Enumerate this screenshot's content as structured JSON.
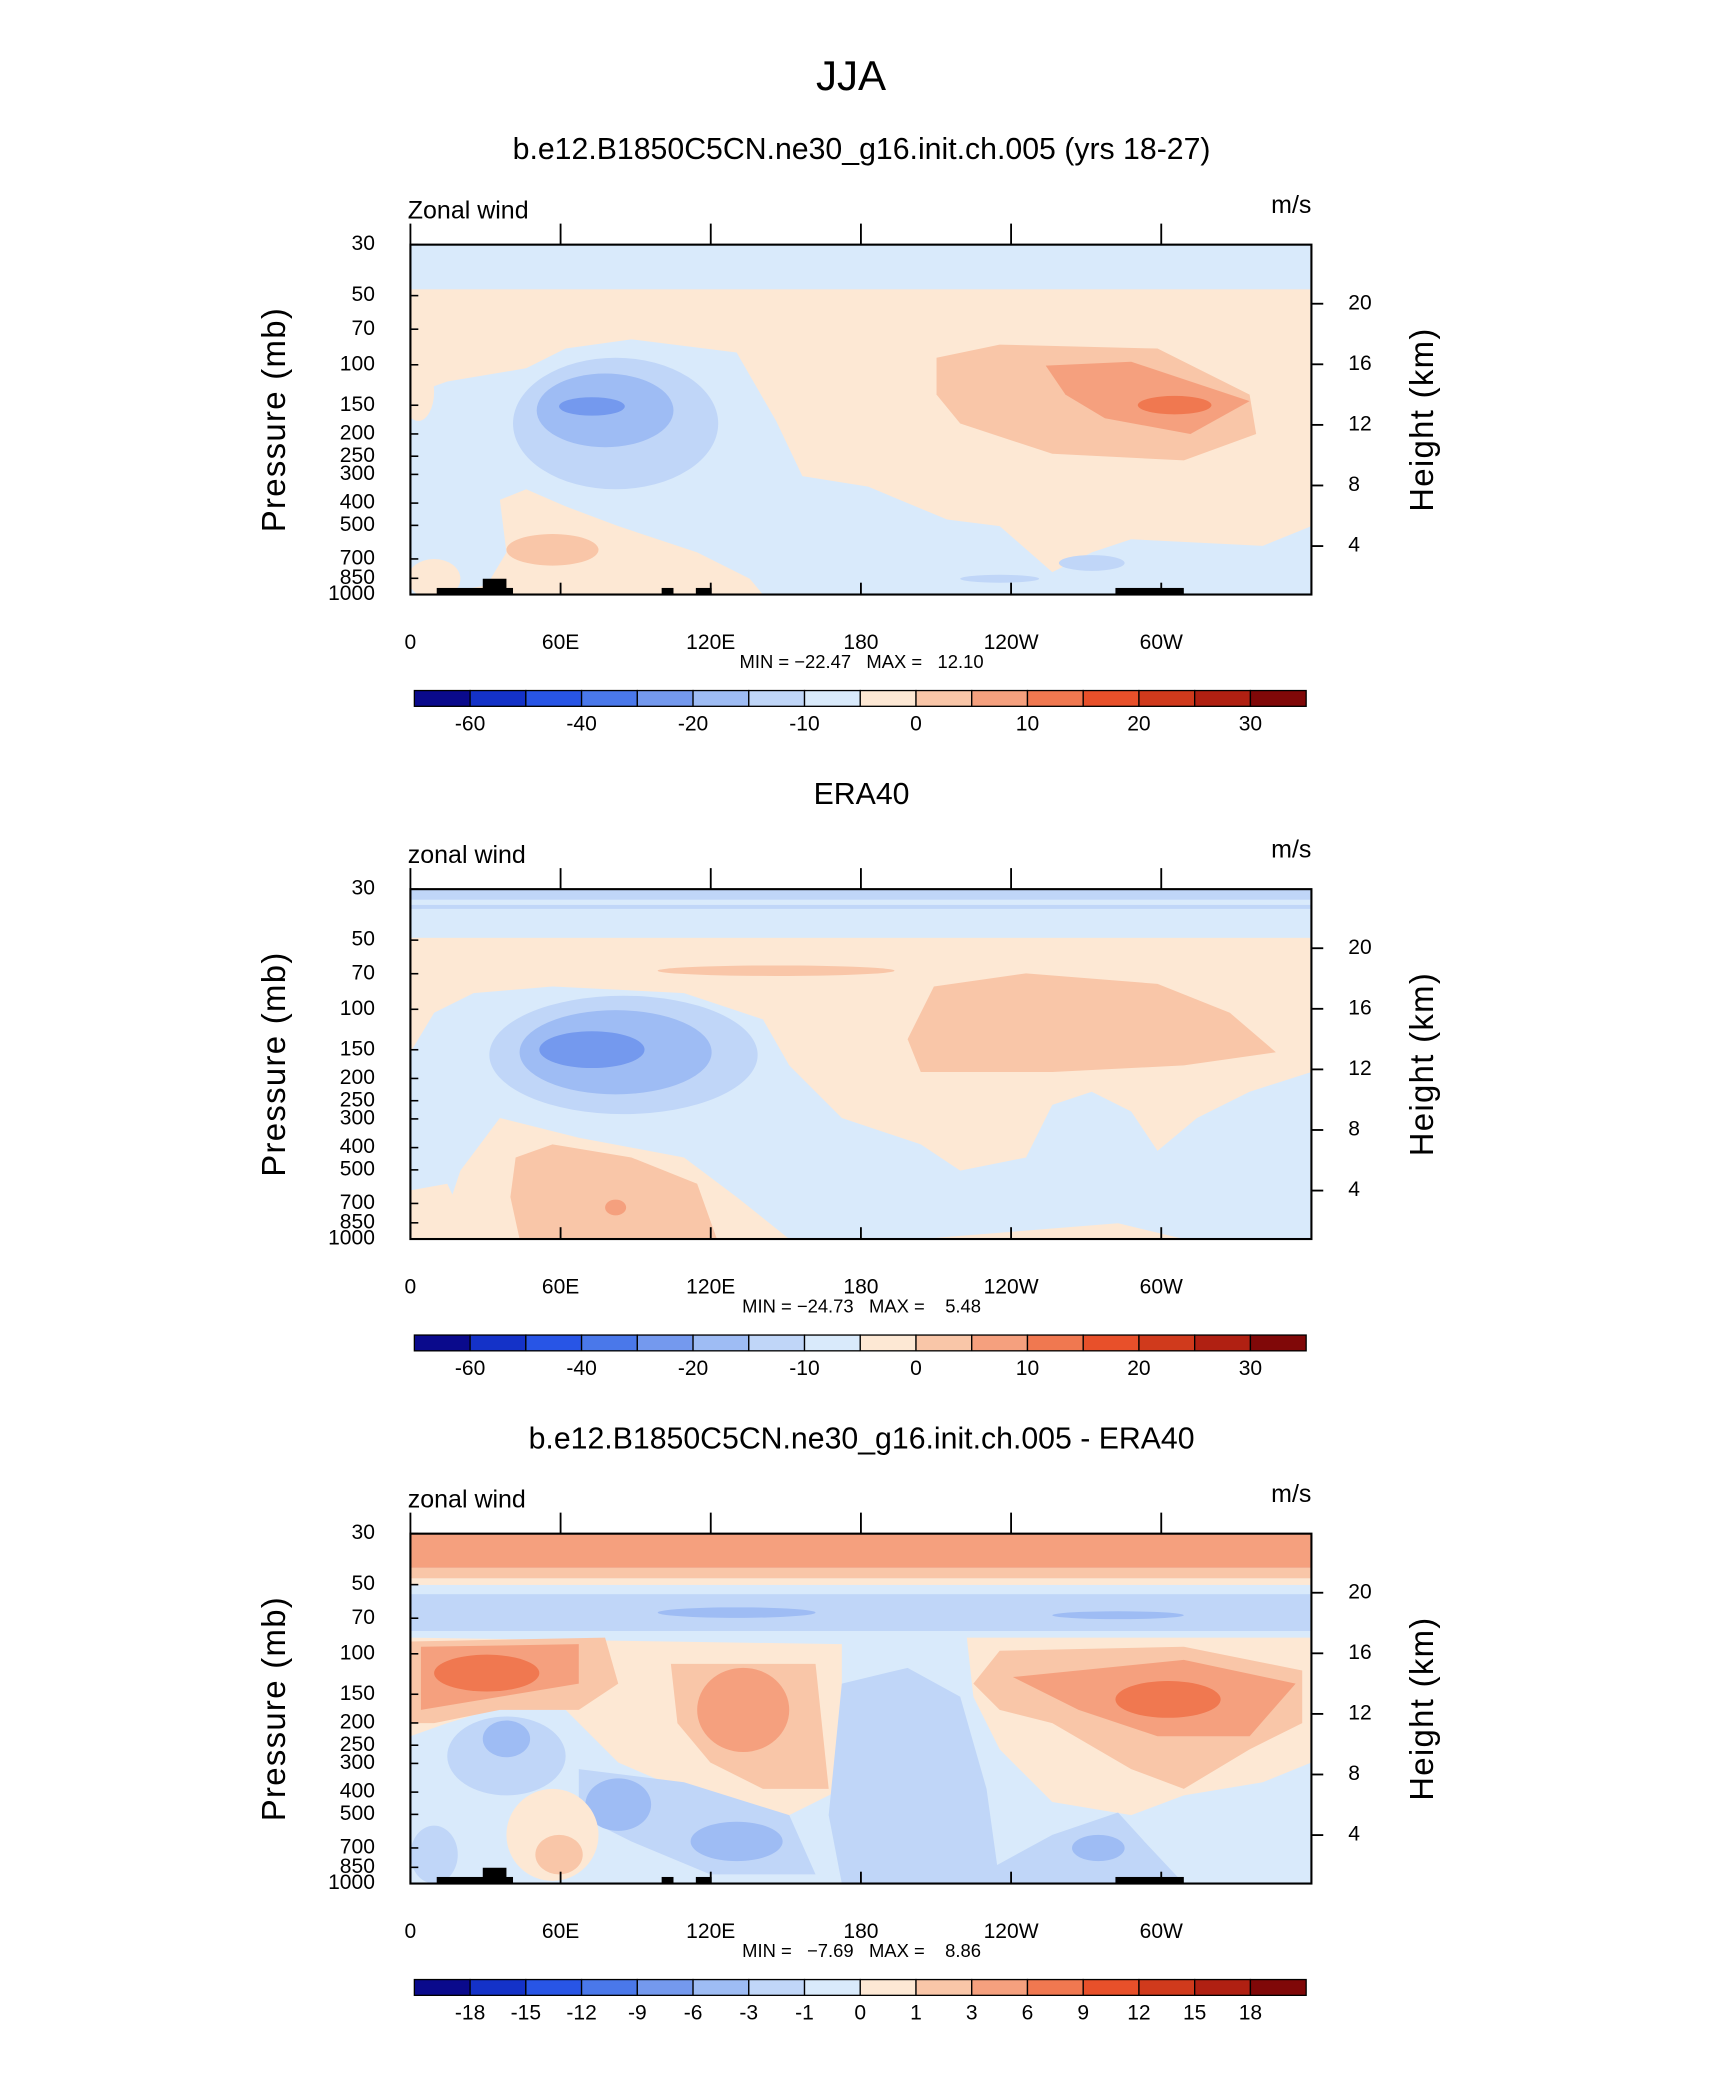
{
  "title": "JJA",
  "chart_data": [
    {
      "type": "contour",
      "title": "b.e12.B1850C5CN.ne30_g16.init.ch.005 (yrs 18-27)",
      "left_title": "Zonal wind",
      "right_title": "m/s",
      "ylabel": "Pressure (mb)",
      "y2label": "Height (km)",
      "xlim": [
        0,
        360
      ],
      "xticks": [
        0,
        {
          "value": 60,
          "label": "60E"
        },
        {
          "value": 120,
          "label": "120E"
        },
        180,
        {
          "value": 240,
          "label": "120W"
        },
        {
          "value": 300,
          "label": "60W"
        }
      ],
      "ylim": [
        30,
        1000
      ],
      "ylog": true,
      "yticks": [
        30,
        50,
        70,
        100,
        150,
        200,
        250,
        300,
        400,
        500,
        700,
        850,
        1000
      ],
      "y2lim": [
        0.8,
        23.9
      ],
      "y2ticks": [
        4,
        8,
        12,
        16,
        20
      ],
      "stats": "MIN = −22.47   MAX =   12.10",
      "colorbar": {
        "levels": [
          -60,
          -50,
          -40,
          -30,
          -20,
          -15,
          -10,
          -5,
          0,
          5,
          10,
          15,
          20,
          25,
          30
        ],
        "labels": [
          -60,
          -40,
          -20,
          -10,
          0,
          10,
          20,
          30
        ],
        "colors": [
          "#0a0a8c",
          "#1432c8",
          "#2855e6",
          "#4a78ea",
          "#7499ee",
          "#9ebcf4",
          "#c0d6f8",
          "#d9eafb",
          "#fde8d4",
          "#f9c6a8",
          "#f5a07e",
          "#f07850",
          "#e8502a",
          "#d03a1c",
          "#b02012",
          "#800808"
        ]
      }
    },
    {
      "type": "contour",
      "title": "ERA40",
      "left_title": "zonal wind",
      "right_title": "m/s",
      "ylabel": "Pressure (mb)",
      "y2label": "Height (km)",
      "xlim": [
        0,
        360
      ],
      "xticks": [
        0,
        {
          "value": 60,
          "label": "60E"
        },
        {
          "value": 120,
          "label": "120E"
        },
        180,
        {
          "value": 240,
          "label": "120W"
        },
        {
          "value": 300,
          "label": "60W"
        }
      ],
      "ylim": [
        30,
        1000
      ],
      "ylog": true,
      "yticks": [
        30,
        50,
        70,
        100,
        150,
        200,
        250,
        300,
        400,
        500,
        700,
        850,
        1000
      ],
      "y2lim": [
        0.8,
        23.9
      ],
      "y2ticks": [
        4,
        8,
        12,
        16,
        20
      ],
      "stats": "MIN = −24.73   MAX =    5.48",
      "colorbar": {
        "levels": [
          -60,
          -50,
          -40,
          -30,
          -20,
          -15,
          -10,
          -5,
          0,
          5,
          10,
          15,
          20,
          25,
          30
        ],
        "labels": [
          -60,
          -40,
          -20,
          -10,
          0,
          10,
          20,
          30
        ],
        "colors": [
          "#0a0a8c",
          "#1432c8",
          "#2855e6",
          "#4a78ea",
          "#7499ee",
          "#9ebcf4",
          "#c0d6f8",
          "#d9eafb",
          "#fde8d4",
          "#f9c6a8",
          "#f5a07e",
          "#f07850",
          "#e8502a",
          "#d03a1c",
          "#b02012",
          "#800808"
        ]
      }
    },
    {
      "type": "contour",
      "title": "b.e12.B1850C5CN.ne30_g16.init.ch.005 - ERA40",
      "left_title": "zonal wind",
      "right_title": "m/s",
      "ylabel": "Pressure (mb)",
      "y2label": "Height (km)",
      "xlim": [
        0,
        360
      ],
      "xticks": [
        0,
        {
          "value": 60,
          "label": "60E"
        },
        {
          "value": 120,
          "label": "120E"
        },
        180,
        {
          "value": 240,
          "label": "120W"
        },
        {
          "value": 300,
          "label": "60W"
        }
      ],
      "ylim": [
        30,
        1000
      ],
      "ylog": true,
      "yticks": [
        30,
        50,
        70,
        100,
        150,
        200,
        250,
        300,
        400,
        500,
        700,
        850,
        1000
      ],
      "y2lim": [
        0.8,
        23.9
      ],
      "y2ticks": [
        4,
        8,
        12,
        16,
        20
      ],
      "stats": "MIN =   −7.69   MAX =    8.86",
      "colorbar": {
        "levels": [
          -18,
          -15,
          -12,
          -9,
          -6,
          -3,
          -1,
          0,
          1,
          3,
          6,
          9,
          12,
          15,
          18
        ],
        "labels": [
          -18,
          -15,
          -12,
          -9,
          -6,
          -3,
          -1,
          0,
          1,
          3,
          6,
          9,
          12,
          15,
          18
        ],
        "colors": [
          "#0a0a8c",
          "#1432c8",
          "#2855e6",
          "#4a78ea",
          "#7499ee",
          "#9ebcf4",
          "#c0d6f8",
          "#d9eafb",
          "#fde8d4",
          "#f9c6a8",
          "#f5a07e",
          "#f07850",
          "#e8502a",
          "#d03a1c",
          "#b02012",
          "#800808"
        ]
      }
    }
  ]
}
